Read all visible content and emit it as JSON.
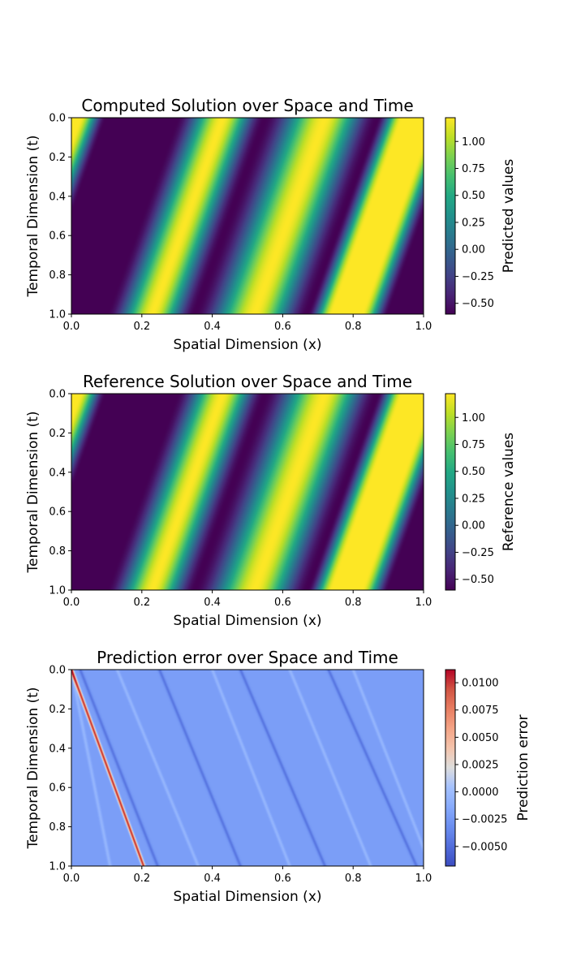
{
  "chart_data": [
    {
      "type": "heatmap",
      "title": "Computed Solution over Space and Time",
      "xlabel": "Spatial Dimension (x)",
      "ylabel": "Temporal Dimension (t)",
      "xlim": [
        0.0,
        1.0
      ],
      "ylim": [
        1.0,
        0.0
      ],
      "xticks": [
        "0.0",
        "0.2",
        "0.4",
        "0.6",
        "0.8",
        "1.0"
      ],
      "yticks": [
        "0.0",
        "0.2",
        "0.4",
        "0.6",
        "0.8",
        "1.0"
      ],
      "colormap": "viridis",
      "colorbar": {
        "label": "Predicted values",
        "range": [
          -0.6,
          1.22
        ],
        "ticks": [
          1.0,
          0.75,
          0.5,
          0.25,
          0.0,
          -0.25,
          -0.5
        ],
        "tick_labels": [
          "1.00",
          "0.75",
          "0.50",
          "0.25",
          "0.00",
          "−0.25",
          "−0.50"
        ]
      },
      "field": {
        "description_of_bands": "diagonal stripes moving right-to-left in x as t increases",
        "wave_speed": 0.2,
        "peaks_at_t0": [
          0.025,
          0.43,
          0.72,
          0.94
        ],
        "troughs_at_t0": [
          0.1,
          0.3,
          0.55,
          0.87
        ],
        "max_value": 1.22,
        "min_value": -0.6
      }
    },
    {
      "type": "heatmap",
      "title": "Reference Solution over Space and Time",
      "xlabel": "Spatial Dimension (x)",
      "ylabel": "Temporal Dimension (t)",
      "xlim": [
        0.0,
        1.0
      ],
      "ylim": [
        1.0,
        0.0
      ],
      "xticks": [
        "0.0",
        "0.2",
        "0.4",
        "0.6",
        "0.8",
        "1.0"
      ],
      "yticks": [
        "0.0",
        "0.2",
        "0.4",
        "0.6",
        "0.8",
        "1.0"
      ],
      "colormap": "viridis",
      "colorbar": {
        "label": "Reference values",
        "range": [
          -0.6,
          1.22
        ],
        "ticks": [
          1.0,
          0.75,
          0.5,
          0.25,
          0.0,
          -0.25,
          -0.5
        ],
        "tick_labels": [
          "1.00",
          "0.75",
          "0.50",
          "0.25",
          "0.00",
          "−0.25",
          "−0.50"
        ]
      },
      "field": {
        "description_of_bands": "diagonal stripes moving right-to-left in x as t increases",
        "wave_speed": 0.2,
        "peaks_at_t0": [
          0.025,
          0.43,
          0.72,
          0.94
        ],
        "troughs_at_t0": [
          0.1,
          0.3,
          0.55,
          0.87
        ],
        "max_value": 1.22,
        "min_value": -0.6
      }
    },
    {
      "type": "heatmap",
      "title": "Prediction error over Space and Time",
      "xlabel": "Spatial Dimension (x)",
      "ylabel": "Temporal Dimension (t)",
      "xlim": [
        0.0,
        1.0
      ],
      "ylim": [
        1.0,
        0.0
      ],
      "xticks": [
        "0.0",
        "0.2",
        "0.4",
        "0.6",
        "0.8",
        "1.0"
      ],
      "yticks": [
        "0.0",
        "0.2",
        "0.4",
        "0.6",
        "0.8",
        "1.0"
      ],
      "colormap": "coolwarm",
      "colorbar": {
        "label": "Prediction error",
        "range": [
          -0.0068,
          0.0112
        ],
        "ticks": [
          0.01,
          0.0075,
          0.005,
          0.0025,
          0.0,
          -0.0025,
          -0.005
        ],
        "tick_labels": [
          "0.0100",
          "0.0075",
          "0.0050",
          "0.0025",
          "0.0000",
          "−0.0025",
          "−0.0050"
        ]
      },
      "field": {
        "background_value": -0.0022,
        "error_lines": [
          {
            "x_at_t0": 0.0,
            "x_at_t1": 0.205,
            "value": 0.0105
          },
          {
            "x_at_t0": 0.0,
            "x_at_t1": 0.11,
            "value": -0.0005
          },
          {
            "x_at_t0": 0.025,
            "x_at_t1": 0.245,
            "value": -0.0045
          },
          {
            "x_at_t0": 0.13,
            "x_at_t1": 0.36,
            "value": -0.0005
          },
          {
            "x_at_t0": 0.25,
            "x_at_t1": 0.48,
            "value": -0.0045
          },
          {
            "x_at_t0": 0.4,
            "x_at_t1": 0.62,
            "value": -0.0005
          },
          {
            "x_at_t0": 0.48,
            "x_at_t1": 0.72,
            "value": -0.0045
          },
          {
            "x_at_t0": 0.62,
            "x_at_t1": 0.85,
            "value": -0.0005
          },
          {
            "x_at_t0": 0.73,
            "x_at_t1": 0.98,
            "value": -0.0045
          },
          {
            "x_at_t0": 0.8,
            "x_at_t1": 1.02,
            "value": -0.0005
          }
        ]
      }
    }
  ]
}
